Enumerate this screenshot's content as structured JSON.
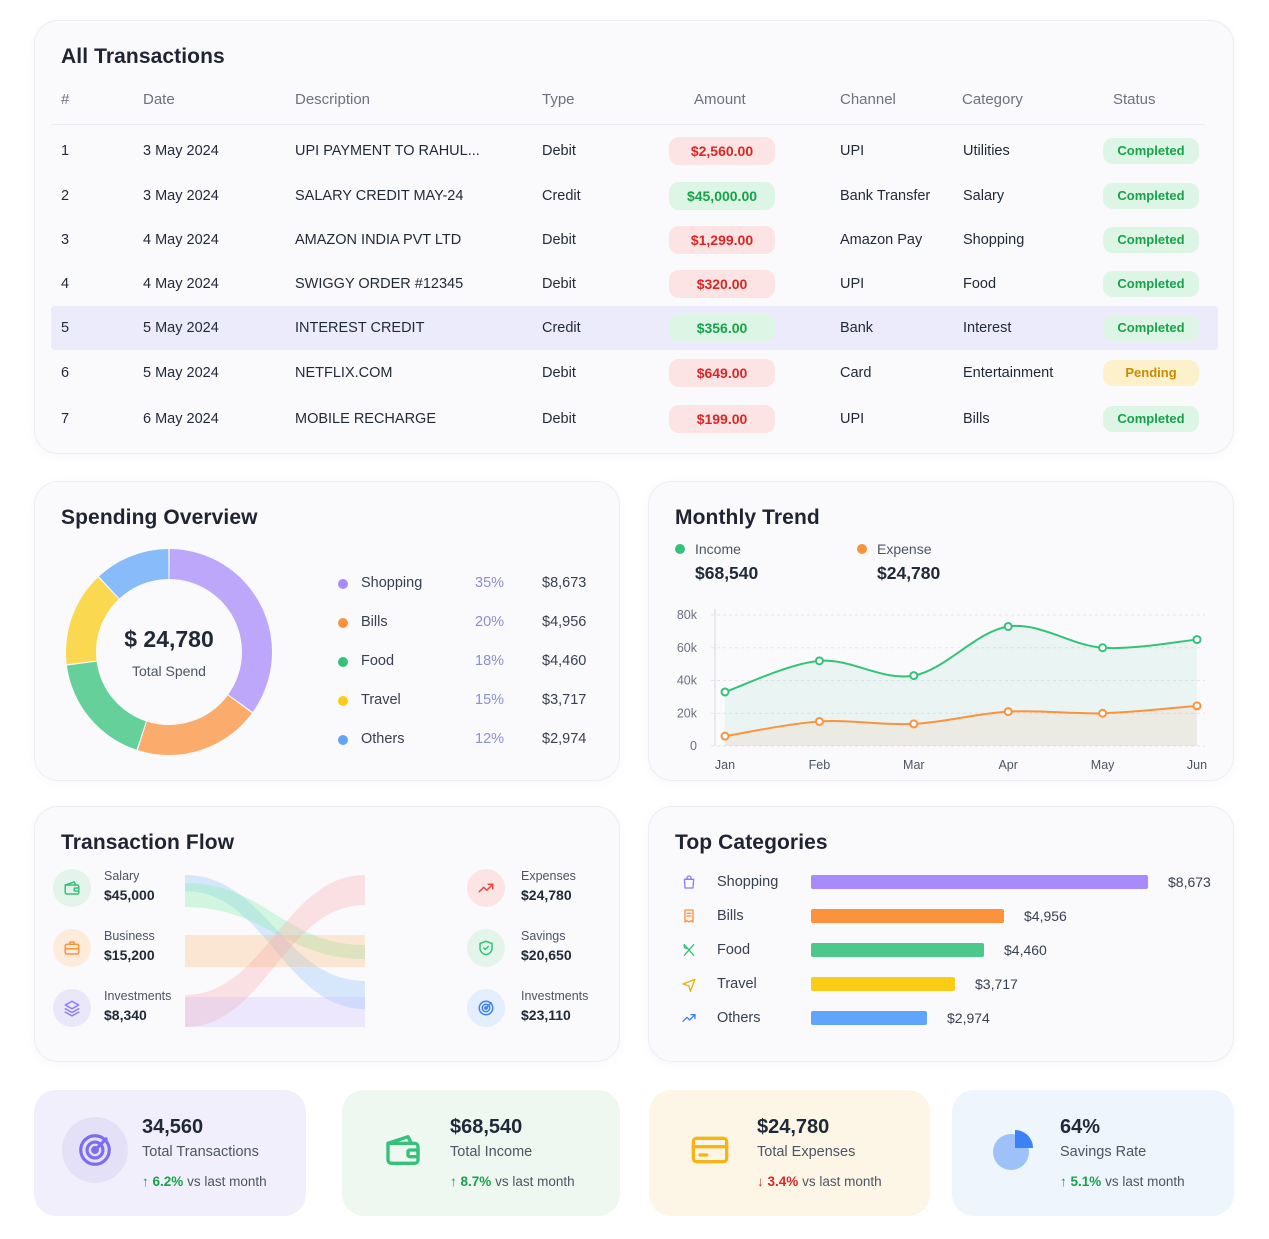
{
  "transactions": {
    "title": "All Transactions",
    "columns": [
      "#",
      "Date",
      "Description",
      "Type",
      "Amount",
      "Channel",
      "Category",
      "Status"
    ],
    "rows": [
      {
        "n": "1",
        "date": "3 May 2024",
        "desc": "UPI PAYMENT TO RAHUL...",
        "type": "Debit",
        "amount": "$2,560.00",
        "channel": "UPI",
        "category": "Utilities",
        "status": "Completed"
      },
      {
        "n": "2",
        "date": "3 May 2024",
        "desc": "SALARY CREDIT MAY-24",
        "type": "Credit",
        "amount": "$45,000.00",
        "channel": "Bank Transfer",
        "category": "Salary",
        "status": "Completed"
      },
      {
        "n": "3",
        "date": "4 May 2024",
        "desc": "AMAZON INDIA PVT LTD",
        "type": "Debit",
        "amount": "$1,299.00",
        "channel": "Amazon Pay",
        "category": "Shopping",
        "status": "Completed"
      },
      {
        "n": "4",
        "date": "4 May 2024",
        "desc": "SWIGGY ORDER #12345",
        "type": "Debit",
        "amount": "$320.00",
        "channel": "UPI",
        "category": "Food",
        "status": "Completed"
      },
      {
        "n": "5",
        "date": "5 May 2024",
        "desc": "INTEREST CREDIT",
        "type": "Credit",
        "amount": "$356.00",
        "channel": "Bank",
        "category": "Interest",
        "status": "Completed"
      },
      {
        "n": "6",
        "date": "5 May 2024",
        "desc": "NETFLIX.COM",
        "type": "Debit",
        "amount": "$649.00",
        "channel": "Card",
        "category": "Entertainment",
        "status": "Pending"
      },
      {
        "n": "7",
        "date": "6 May 2024",
        "desc": "MOBILE RECHARGE",
        "type": "Debit",
        "amount": "$199.00",
        "channel": "UPI",
        "category": "Bills",
        "status": "Completed"
      }
    ]
  },
  "spending": {
    "title": "Spending Overview",
    "total": "$ 24,780",
    "total_label": "Total Spend",
    "items": [
      {
        "name": "Shopping",
        "pct": "35%",
        "value": "$8,673",
        "color": "#a78bfa"
      },
      {
        "name": "Bills",
        "pct": "20%",
        "value": "$4,956",
        "color": "#fb923c"
      },
      {
        "name": "Food",
        "pct": "18%",
        "value": "$4,460",
        "color": "#34c27a"
      },
      {
        "name": "Travel",
        "pct": "15%",
        "value": "$3,717",
        "color": "#facc15"
      },
      {
        "name": "Others",
        "pct": "12%",
        "value": "$2,974",
        "color": "#60a5fa"
      }
    ]
  },
  "trend": {
    "title": "Monthly Trend",
    "income_label": "Income",
    "income_value": "$68,540",
    "expense_label": "Expense",
    "expense_value": "$24,780"
  },
  "chart_data": {
    "type": "line",
    "x": [
      "Jan",
      "Feb",
      "Mar",
      "Apr",
      "May",
      "Jun"
    ],
    "ylim": [
      0,
      80000
    ],
    "yticks": [
      "0",
      "20k",
      "40k",
      "60k",
      "80k"
    ],
    "series": [
      {
        "name": "Income",
        "color": "#34c27a",
        "values": [
          33000,
          52000,
          43000,
          73000,
          60000,
          65000
        ]
      },
      {
        "name": "Expense",
        "color": "#fb923c",
        "values": [
          6000,
          15000,
          13500,
          21000,
          20000,
          24500
        ]
      }
    ]
  },
  "flow": {
    "title": "Transaction Flow",
    "sources": [
      {
        "label": "Salary",
        "value": "$45,000",
        "color": "#34c27a",
        "bg": "#e3f5ea",
        "icon": "wallet-icon"
      },
      {
        "label": "Business",
        "value": "$15,200",
        "color": "#fb923c",
        "bg": "#fdebdc",
        "icon": "briefcase-icon"
      },
      {
        "label": "Investments",
        "value": "$8,340",
        "color": "#8b7cf6",
        "bg": "#ebe7fb",
        "icon": "layers-icon"
      }
    ],
    "targets": [
      {
        "label": "Expenses",
        "value": "$24,780",
        "color": "#ef4444",
        "bg": "#fde4e4",
        "icon": "trend-up-icon"
      },
      {
        "label": "Savings",
        "value": "$20,650",
        "color": "#34c27a",
        "bg": "#e3f5ea",
        "icon": "shield-icon"
      },
      {
        "label": "Investments",
        "value": "$23,110",
        "color": "#3b82f6",
        "bg": "#e3eefe",
        "icon": "target-icon"
      }
    ]
  },
  "top_categories": {
    "title": "Top Categories",
    "items": [
      {
        "name": "Shopping",
        "value": "$8,673",
        "amount": 8673,
        "color": "#a78bfa",
        "icon": "bag-icon",
        "icon_color": "#8b7cf6"
      },
      {
        "name": "Bills",
        "value": "$4,956",
        "amount": 4956,
        "color": "#fb923c",
        "icon": "receipt-icon",
        "icon_color": "#fb923c"
      },
      {
        "name": "Food",
        "value": "$4,460",
        "amount": 4460,
        "color": "#4cc88a",
        "icon": "cutlery-icon",
        "icon_color": "#34c27a"
      },
      {
        "name": "Travel",
        "value": "$3,717",
        "amount": 3717,
        "color": "#facc15",
        "icon": "plane-icon",
        "icon_color": "#eab308"
      },
      {
        "name": "Others",
        "value": "$2,974",
        "amount": 2974,
        "color": "#60a5fa",
        "icon": "trend-up-icon",
        "icon_color": "#3b82f6"
      }
    ]
  },
  "stats": [
    {
      "value": "34,560",
      "label": "Total Transactions",
      "change": "6.2%",
      "suffix": "vs last month",
      "dir": "up",
      "change_color": "#16a34a",
      "bg": "#f1effb",
      "icon": "target-icon",
      "icon_color": "#7c6cf0"
    },
    {
      "value": "$68,540",
      "label": "Total Income",
      "change": "8.7%",
      "suffix": "vs last month",
      "dir": "up",
      "change_color": "#16a34a",
      "bg": "#eef8f1",
      "icon": "wallet-icon",
      "icon_color": "#34c27a"
    },
    {
      "value": "$24,780",
      "label": "Total Expenses",
      "change": "3.4%",
      "suffix": "vs last month",
      "dir": "down",
      "change_color": "#dc2626",
      "bg": "#fdf6e6",
      "icon": "card-icon",
      "icon_color": "#f5b418"
    },
    {
      "value": "64%",
      "label": "Savings Rate",
      "change": "5.1%",
      "suffix": "vs last month",
      "dir": "up",
      "change_color": "#16a34a",
      "bg": "#eef5fd",
      "icon": "pie-icon",
      "icon_color": "#3b82f6"
    }
  ]
}
